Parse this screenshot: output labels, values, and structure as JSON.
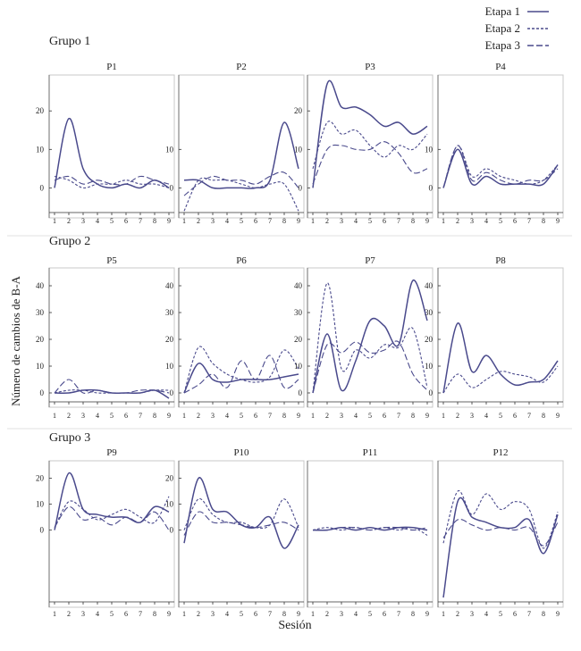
{
  "legend": [
    {
      "label": "Etapa 1",
      "dash": "solid"
    },
    {
      "label": "Etapa 2",
      "dash": "short-dash"
    },
    {
      "label": "Etapa 3",
      "dash": "long-dash"
    }
  ],
  "ylabel": "Número de cambios de B-A",
  "xlabel": "Sesión",
  "colors": {
    "series": "#4a4a8c",
    "frame": "#c8c8c8",
    "axis": "#333333"
  },
  "chart_data": [
    {
      "type": "line",
      "group": "Grupo 1",
      "title": "P1",
      "x": [
        1,
        2,
        3,
        4,
        5,
        6,
        7,
        8,
        9
      ],
      "yticks": [
        0,
        10,
        20
      ],
      "series": [
        {
          "name": "Etapa 1",
          "values": [
            0,
            18,
            5,
            1,
            0,
            1,
            0,
            2,
            0
          ]
        },
        {
          "name": "Etapa 2",
          "values": [
            3,
            2,
            0,
            1,
            1,
            2,
            1,
            1,
            0
          ]
        },
        {
          "name": "Etapa 3",
          "values": [
            2,
            3,
            1,
            2,
            1,
            1,
            3,
            2,
            1
          ]
        }
      ]
    },
    {
      "type": "line",
      "group": "Grupo 1",
      "title": "P2",
      "x": [
        1,
        2,
        3,
        4,
        5,
        6,
        7,
        8,
        9
      ],
      "yticks": [
        0,
        10
      ],
      "series": [
        {
          "name": "Etapa 1",
          "values": [
            2,
            2,
            0,
            0,
            0,
            0,
            2,
            17,
            5
          ]
        },
        {
          "name": "Etapa 2",
          "values": [
            -6,
            2,
            2,
            2,
            1,
            0,
            1,
            1,
            -6
          ]
        },
        {
          "name": "Etapa 3",
          "values": [
            -2,
            1,
            3,
            2,
            2,
            1,
            3,
            4,
            0
          ]
        }
      ]
    },
    {
      "type": "line",
      "group": "Grupo 1",
      "title": "P3",
      "x": [
        1,
        2,
        3,
        4,
        5,
        6,
        7,
        8,
        9
      ],
      "yticks": [
        0,
        10,
        20
      ],
      "series": [
        {
          "name": "Etapa 1",
          "values": [
            0,
            27,
            21,
            21,
            19,
            16,
            17,
            14,
            16
          ]
        },
        {
          "name": "Etapa 2",
          "values": [
            5,
            17,
            14,
            15,
            11,
            8,
            11,
            10,
            14
          ]
        },
        {
          "name": "Etapa 3",
          "values": [
            1,
            10,
            11,
            10,
            10,
            12,
            9,
            4,
            5
          ]
        }
      ]
    },
    {
      "type": "line",
      "group": "Grupo 1",
      "title": "P4",
      "x": [
        1,
        2,
        3,
        4,
        5,
        6,
        7,
        8,
        9
      ],
      "yticks": [
        0,
        10
      ],
      "series": [
        {
          "name": "Etapa 1",
          "values": [
            0,
            10,
            1,
            3,
            1,
            1,
            1,
            1,
            6
          ]
        },
        {
          "name": "Etapa 2",
          "values": [
            0,
            11,
            3,
            5,
            3,
            2,
            1,
            2,
            6
          ]
        },
        {
          "name": "Etapa 3",
          "values": [
            0,
            11,
            2,
            4,
            2,
            1,
            2,
            2,
            5
          ]
        }
      ]
    },
    {
      "type": "line",
      "group": "Grupo 2",
      "title": "P5",
      "x": [
        1,
        2,
        3,
        4,
        5,
        6,
        7,
        8,
        9
      ],
      "yticks": [
        0,
        10,
        20,
        30,
        40
      ],
      "series": [
        {
          "name": "Etapa 1",
          "values": [
            0,
            0,
            1,
            1,
            0,
            0,
            0,
            1,
            -2
          ]
        },
        {
          "name": "Etapa 2",
          "values": [
            0,
            1,
            1,
            0,
            0,
            0,
            0,
            1,
            1
          ]
        },
        {
          "name": "Etapa 3",
          "values": [
            0,
            5,
            0,
            1,
            0,
            0,
            1,
            1,
            0
          ]
        }
      ]
    },
    {
      "type": "line",
      "group": "Grupo 2",
      "title": "P6",
      "x": [
        1,
        2,
        3,
        4,
        5,
        6,
        7,
        8,
        9
      ],
      "yticks": [
        0,
        10,
        20,
        30,
        40
      ],
      "series": [
        {
          "name": "Etapa 1",
          "values": [
            0,
            11,
            5,
            4,
            5,
            5,
            5,
            6,
            7
          ]
        },
        {
          "name": "Etapa 2",
          "values": [
            0,
            17,
            11,
            7,
            5,
            4,
            6,
            16,
            9
          ]
        },
        {
          "name": "Etapa 3",
          "values": [
            0,
            3,
            7,
            2,
            12,
            5,
            14,
            2,
            5
          ]
        }
      ]
    },
    {
      "type": "line",
      "group": "Grupo 2",
      "title": "P7",
      "x": [
        1,
        2,
        3,
        4,
        5,
        6,
        7,
        8,
        9
      ],
      "yticks": [
        0,
        10,
        20,
        30,
        40
      ],
      "series": [
        {
          "name": "Etapa 1",
          "values": [
            0,
            22,
            1,
            12,
            27,
            25,
            18,
            42,
            27
          ]
        },
        {
          "name": "Etapa 2",
          "values": [
            0,
            41,
            9,
            16,
            13,
            18,
            17,
            24,
            2
          ]
        },
        {
          "name": "Etapa 3",
          "values": [
            0,
            18,
            15,
            19,
            15,
            16,
            19,
            7,
            1
          ]
        }
      ]
    },
    {
      "type": "line",
      "group": "Grupo 2",
      "title": "P8",
      "x": [
        1,
        2,
        3,
        4,
        5,
        6,
        7,
        8,
        9
      ],
      "yticks": [
        0,
        10,
        20,
        30,
        40
      ],
      "series": [
        {
          "name": "Etapa 1",
          "values": [
            0,
            26,
            8,
            14,
            7,
            3,
            4,
            5,
            12
          ]
        },
        {
          "name": "Etapa 2",
          "values": [
            0,
            7,
            2,
            5,
            8,
            7,
            6,
            4,
            10
          ]
        }
      ]
    },
    {
      "type": "line",
      "group": "Grupo 3",
      "title": "P9",
      "x": [
        1,
        2,
        3,
        4,
        5,
        6,
        7,
        8,
        9
      ],
      "yticks": [
        0,
        10,
        20
      ],
      "series": [
        {
          "name": "Etapa 1",
          "values": [
            0,
            22,
            8,
            6,
            5,
            5,
            3,
            9,
            7
          ]
        },
        {
          "name": "Etapa 2",
          "values": [
            1,
            11,
            8,
            4,
            6,
            8,
            5,
            3,
            13
          ]
        },
        {
          "name": "Etapa 3",
          "values": [
            1,
            9,
            4,
            5,
            2,
            5,
            3,
            7,
            0
          ]
        }
      ]
    },
    {
      "type": "line",
      "group": "Grupo 3",
      "title": "P10",
      "x": [
        1,
        2,
        3,
        4,
        5,
        6,
        7,
        8,
        9
      ],
      "yticks": [
        0,
        10,
        20
      ],
      "series": [
        {
          "name": "Etapa 1",
          "values": [
            -5,
            20,
            8,
            7,
            2,
            1,
            5,
            -7,
            2
          ]
        },
        {
          "name": "Etapa 2",
          "values": [
            0,
            12,
            6,
            3,
            3,
            1,
            2,
            12,
            1
          ]
        },
        {
          "name": "Etapa 3",
          "values": [
            -2,
            7,
            3,
            3,
            2,
            1,
            2,
            3,
            0
          ]
        }
      ]
    },
    {
      "type": "line",
      "group": "Grupo 3",
      "title": "P11",
      "x": [
        1,
        2,
        3,
        4,
        5,
        6,
        7,
        8,
        9
      ],
      "yticks": [],
      "series": [
        {
          "name": "Etapa 1",
          "values": [
            0,
            0,
            1,
            0,
            1,
            0,
            1,
            1,
            0
          ]
        },
        {
          "name": "Etapa 2",
          "values": [
            0,
            1,
            0,
            1,
            0,
            1,
            0,
            1,
            -2
          ]
        },
        {
          "name": "Etapa 3",
          "values": [
            0,
            0,
            1,
            1,
            0,
            1,
            1,
            0,
            1
          ]
        }
      ]
    },
    {
      "type": "line",
      "group": "Grupo 3",
      "title": "P12",
      "x": [
        1,
        2,
        3,
        4,
        5,
        6,
        7,
        8,
        9
      ],
      "yticks": [],
      "series": [
        {
          "name": "Etapa 1",
          "values": [
            -26,
            11,
            5,
            3,
            1,
            1,
            4,
            -9,
            6
          ]
        },
        {
          "name": "Etapa 2",
          "values": [
            -5,
            15,
            6,
            14,
            8,
            11,
            8,
            -7,
            7
          ]
        },
        {
          "name": "Etapa 3",
          "values": [
            -3,
            4,
            2,
            0,
            1,
            0,
            1,
            -6,
            3
          ]
        }
      ]
    }
  ]
}
